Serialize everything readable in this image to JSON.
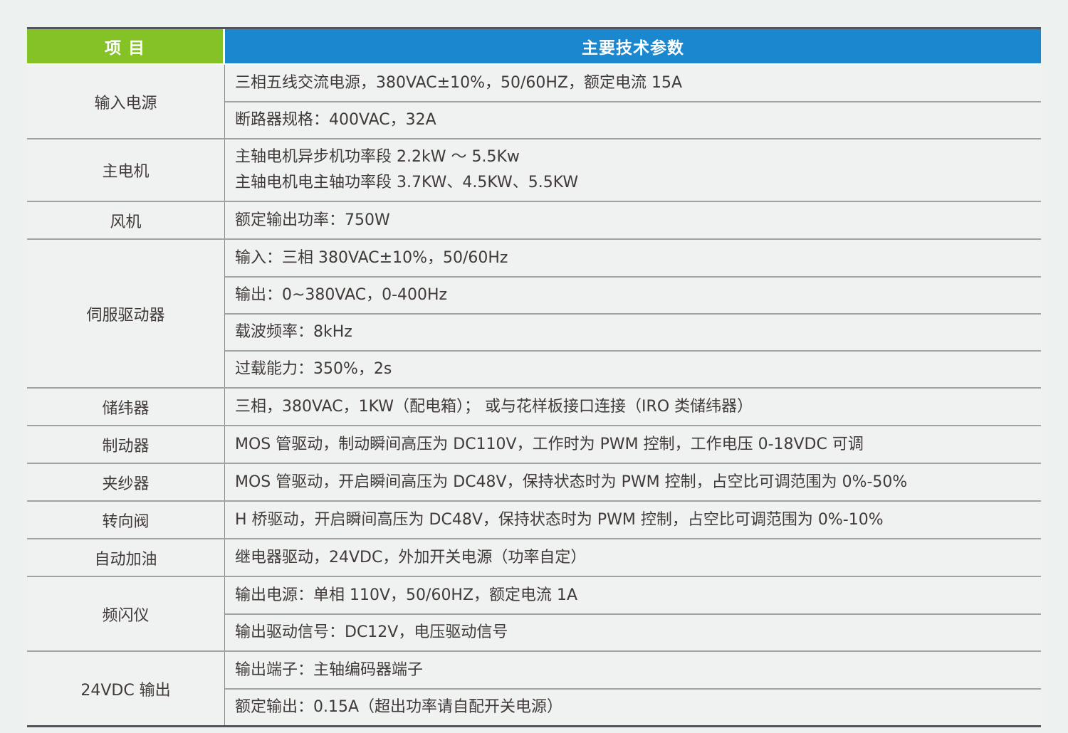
{
  "page": {
    "background_color": "#edf1f0",
    "text_color": "#403a38"
  },
  "table": {
    "header": {
      "item_label": "项 目",
      "params_label": "主要技术参数",
      "item_bg_color": "#85c226",
      "params_bg_color": "#1b87ce"
    },
    "rows": [
      {
        "item": "输入电源",
        "specs": [
          [
            "三相五线交流电源，380VAC±10%，50/60HZ，额定电流 15A"
          ],
          [
            "断路器规格：400VAC，32A"
          ]
        ]
      },
      {
        "item": "主电机",
        "specs": [
          [
            "主轴电机异步机功率段 2.2kW ～ 5.5Kw",
            "主轴电机电主轴功率段 3.7KW、4.5KW、5.5KW"
          ]
        ]
      },
      {
        "item": "风机",
        "specs": [
          [
            "额定输出功率：750W"
          ]
        ]
      },
      {
        "item": "伺服驱动器",
        "specs": [
          [
            "输入：三相 380VAC±10%，50/60Hz"
          ],
          [
            "输出：0~380VAC，0-400Hz"
          ],
          [
            "载波频率：8kHz"
          ],
          [
            "过载能力：350%，2s"
          ]
        ]
      },
      {
        "item": "储纬器",
        "specs": [
          [
            "三相，380VAC，1KW（配电箱）； 或与花样板接口连接（IRO 类储纬器）"
          ]
        ]
      },
      {
        "item": "制动器",
        "specs": [
          [
            "MOS 管驱动，制动瞬间高压为 DC110V，工作时为 PWM 控制，工作电压 0-18VDC 可调"
          ]
        ]
      },
      {
        "item": "夹纱器",
        "specs": [
          [
            "MOS 管驱动，开启瞬间高压为 DC48V，保持状态时为 PWM 控制，占空比可调范围为 0%-50%"
          ]
        ]
      },
      {
        "item": "转向阀",
        "specs": [
          [
            "H 桥驱动，开启瞬间高压为 DC48V，保持状态时为 PWM 控制，占空比可调范围为 0%-10%"
          ]
        ]
      },
      {
        "item": "自动加油",
        "specs": [
          [
            "继电器驱动，24VDC，外加开关电源（功率自定）"
          ]
        ]
      },
      {
        "item": "频闪仪",
        "specs": [
          [
            "输出电源：单相 110V，50/60HZ，额定电流 1A"
          ],
          [
            "输出驱动信号：DC12V，电压驱动信号"
          ]
        ]
      },
      {
        "item": "24VDC 输出",
        "specs": [
          [
            "输出端子：主轴编码器端子"
          ],
          [
            "额定输出：0.15A（超出功率请自配开关电源）"
          ]
        ]
      }
    ]
  }
}
